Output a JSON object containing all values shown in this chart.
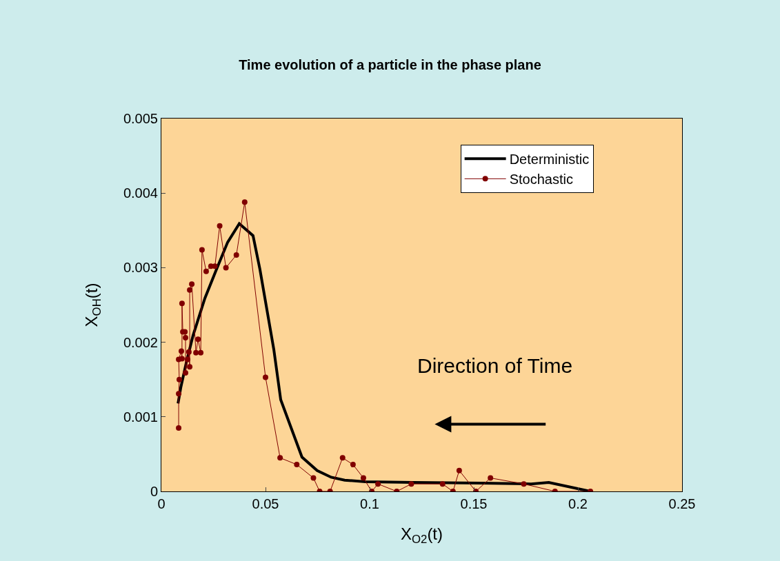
{
  "chart_data": {
    "type": "line",
    "title": "Time evolution of a particle in the phase plane",
    "xlabel": "X$_{O2}$(t)",
    "ylabel": "X$_{OH}$(t)",
    "annotations": [
      "Direction of Time"
    ],
    "xlim": [
      0,
      0.25
    ],
    "xticks": [
      0,
      0.05,
      0.1,
      0.15,
      0.2,
      0.25
    ],
    "ylim": [
      0,
      0.005
    ],
    "yticks": [
      0,
      0.001,
      0.002,
      0.003,
      0.004,
      0.005
    ],
    "grid": false,
    "legend": "top right",
    "series": [
      {
        "name": "Deterministic",
        "color": "#000000",
        "marker": "none",
        "line_style": "solid",
        "x": [
          0.206,
          0.186,
          0.1775,
          0.154,
          0.121,
          0.098,
          0.088,
          0.0815,
          0.0748,
          0.0675,
          0.0573,
          0.054,
          0.0473,
          0.044,
          0.0374,
          0.0318,
          0.0262,
          0.0209,
          0.0152,
          0.0119,
          0.0093,
          0.008
        ],
        "values": [
          0,
          0.00012,
          0.0001,
          0.00011,
          0.00012,
          0.00013,
          0.00015,
          0.00019,
          0.00028,
          0.00046,
          0.00123,
          0.0019,
          0.00298,
          0.00343,
          0.00359,
          0.00334,
          0.00296,
          0.00259,
          0.00209,
          0.00172,
          0.00139,
          0.00118
        ]
      },
      {
        "name": "Stochastic",
        "color": "#800000",
        "marker": "circle",
        "line_style": "solid",
        "x": [
          0.206,
          0.189,
          0.174,
          0.158,
          0.151,
          0.143,
          0.14,
          0.135,
          0.12,
          0.113,
          0.104,
          0.101,
          0.097,
          0.092,
          0.087,
          0.081,
          0.076,
          0.073,
          0.065,
          0.057,
          0.05,
          0.04,
          0.036,
          0.031,
          0.028,
          0.0257,
          0.0238,
          0.0215,
          0.0195,
          0.0189,
          0.0176,
          0.0166,
          0.0146,
          0.0136,
          0.0136,
          0.0132,
          0.0126,
          0.0116,
          0.0116,
          0.0113,
          0.0103,
          0.0099,
          0.0099,
          0.0096,
          0.0083,
          0.0086,
          0.0083,
          0.0083
        ],
        "values": [
          0,
          0,
          0.0001,
          0.00018,
          0,
          0.00028,
          0,
          0.0001,
          0.0001,
          0,
          0.0001,
          0,
          0.00018,
          0.00036,
          0.00045,
          0,
          0,
          0.00018,
          0.00036,
          0.00045,
          0.00153,
          0.00388,
          0.00317,
          0.003,
          0.00356,
          0.00302,
          0.00302,
          0.00295,
          0.00324,
          0.00186,
          0.00204,
          0.00186,
          0.00278,
          0.0027,
          0.00167,
          0.00187,
          0.00177,
          0.00159,
          0.00206,
          0.00214,
          0.00214,
          0.00252,
          0.00178,
          0.00188,
          0.00177,
          0.0015,
          0.00131,
          0.00085
        ]
      }
    ]
  }
}
